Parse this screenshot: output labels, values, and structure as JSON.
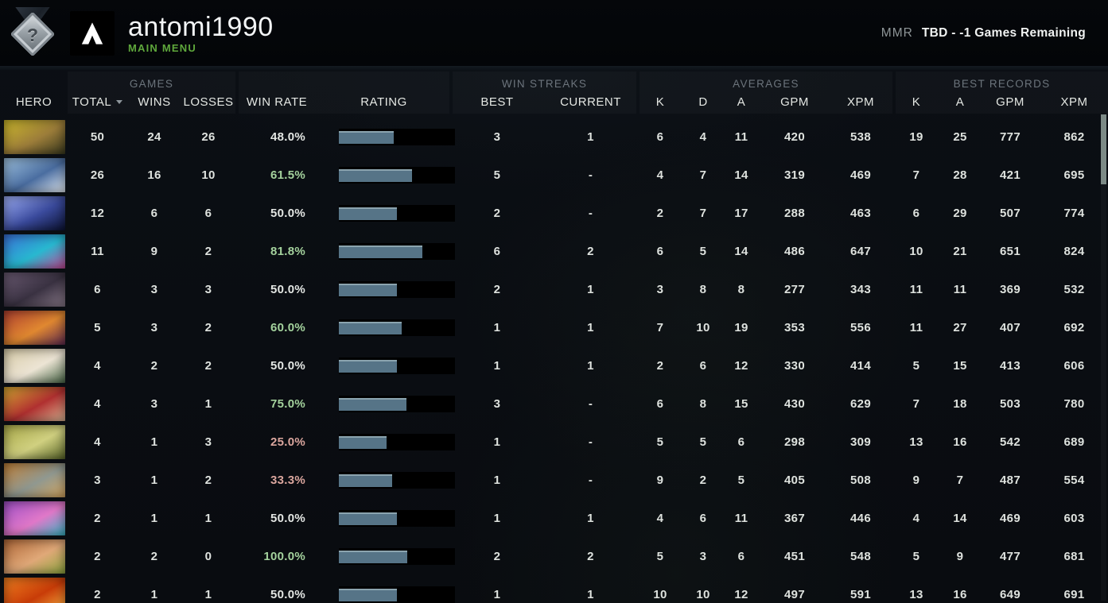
{
  "header_bar": {
    "username": "antomi1990",
    "subtitle": "MAIN MENU",
    "mmr_label": "MMR",
    "mmr_value": "TBD - -1 Games Remaining",
    "medal_icon": "unranked-question-medal-icon",
    "logo_icon": "dota2-logo-icon"
  },
  "colors": {
    "accent_green": "#5fa83c",
    "winrate_positive": "#a4d29d",
    "winrate_negative": "#dba69e",
    "winrate_neutral": "#e3e6e3",
    "rating_bar_fill": "#567487",
    "rating_bar_bg": "#000000",
    "scrollbar_thumb": "#7c8a86"
  },
  "table": {
    "groups": {
      "games": "GAMES",
      "win_streaks": "WIN STREAKS",
      "averages": "AVERAGES",
      "best_records": "BEST RECORDS"
    },
    "columns": {
      "hero": "HERO",
      "total": "TOTAL",
      "wins": "WINS",
      "losses": "LOSSES",
      "win_rate": "WIN RATE",
      "rating": "RATING",
      "best": "BEST",
      "current": "CURRENT",
      "k": "K",
      "d": "D",
      "a": "A",
      "gpm": "GPM",
      "xpm": "XPM",
      "rec_k": "K",
      "rec_a": "A",
      "rec_gpm": "GPM",
      "rec_xpm": "XPM"
    },
    "rows": [
      {
        "hero": "hoodwink",
        "portrait_colors": [
          "#cdb92c",
          "#9c7d3a",
          "#3a3a1e"
        ],
        "total": "50",
        "wins": "24",
        "losses": "26",
        "win_rate": "48.0%",
        "win_rate_color": "neutral",
        "rating_pct": 47,
        "streak_best": "3",
        "streak_current": "1",
        "avg_k": "6",
        "avg_d": "4",
        "avg_a": "11",
        "avg_gpm": "420",
        "avg_xpm": "538",
        "best_k": "19",
        "best_a": "25",
        "best_gpm": "777",
        "best_xpm": "862"
      },
      {
        "hero": "crystal-maiden",
        "portrait_colors": [
          "#9fc3e0",
          "#4a6da0",
          "#e8f0f8"
        ],
        "total": "26",
        "wins": "16",
        "losses": "10",
        "win_rate": "61.5%",
        "win_rate_color": "positive",
        "rating_pct": 63,
        "streak_best": "5",
        "streak_current": "-",
        "avg_k": "4",
        "avg_d": "7",
        "avg_a": "14",
        "avg_gpm": "319",
        "avg_xpm": "469",
        "best_k": "7",
        "best_a": "28",
        "best_gpm": "421",
        "best_xpm": "695"
      },
      {
        "hero": "io",
        "portrait_colors": [
          "#9fb0f8",
          "#3a4a9c",
          "#0c1334"
        ],
        "total": "12",
        "wins": "6",
        "losses": "6",
        "win_rate": "50.0%",
        "win_rate_color": "neutral",
        "rating_pct": 50,
        "streak_best": "2",
        "streak_current": "-",
        "avg_k": "2",
        "avg_d": "7",
        "avg_a": "17",
        "avg_gpm": "288",
        "avg_xpm": "463",
        "best_k": "6",
        "best_a": "29",
        "best_gpm": "507",
        "best_xpm": "774"
      },
      {
        "hero": "puck",
        "portrait_colors": [
          "#3a70d8",
          "#28b8d0",
          "#c84898"
        ],
        "total": "11",
        "wins": "9",
        "losses": "2",
        "win_rate": "81.8%",
        "win_rate_color": "positive",
        "rating_pct": 72,
        "streak_best": "6",
        "streak_current": "2",
        "avg_k": "6",
        "avg_d": "5",
        "avg_a": "14",
        "avg_gpm": "486",
        "avg_xpm": "647",
        "best_k": "10",
        "best_a": "21",
        "best_gpm": "651",
        "best_xpm": "824"
      },
      {
        "hero": "night-stalker",
        "portrait_colors": [
          "#6a5a72",
          "#3a3242",
          "#8a7a8a"
        ],
        "total": "6",
        "wins": "3",
        "losses": "3",
        "win_rate": "50.0%",
        "win_rate_color": "neutral",
        "rating_pct": 50,
        "streak_best": "2",
        "streak_current": "1",
        "avg_k": "3",
        "avg_d": "8",
        "avg_a": "8",
        "avg_gpm": "277",
        "avg_xpm": "343",
        "best_k": "11",
        "best_a": "11",
        "best_gpm": "369",
        "best_xpm": "532"
      },
      {
        "hero": "lion",
        "portrait_colors": [
          "#b04030",
          "#e08830",
          "#602a50"
        ],
        "total": "5",
        "wins": "3",
        "losses": "2",
        "win_rate": "60.0%",
        "win_rate_color": "positive",
        "rating_pct": 54,
        "streak_best": "1",
        "streak_current": "1",
        "avg_k": "7",
        "avg_d": "10",
        "avg_a": "19",
        "avg_gpm": "353",
        "avg_xpm": "556",
        "best_k": "11",
        "best_a": "27",
        "best_gpm": "407",
        "best_xpm": "692"
      },
      {
        "hero": "keeper-of-the-light",
        "portrait_colors": [
          "#d8cca8",
          "#ece4d4",
          "#4a6848"
        ],
        "total": "4",
        "wins": "2",
        "losses": "2",
        "win_rate": "50.0%",
        "win_rate_color": "neutral",
        "rating_pct": 50,
        "streak_best": "1",
        "streak_current": "1",
        "avg_k": "2",
        "avg_d": "6",
        "avg_a": "12",
        "avg_gpm": "330",
        "avg_xpm": "414",
        "best_k": "5",
        "best_a": "15",
        "best_gpm": "413",
        "best_xpm": "606"
      },
      {
        "hero": "legion-commander",
        "portrait_colors": [
          "#d4a832",
          "#b03030",
          "#e0b896"
        ],
        "total": "4",
        "wins": "3",
        "losses": "1",
        "win_rate": "75.0%",
        "win_rate_color": "positive",
        "rating_pct": 58,
        "streak_best": "3",
        "streak_current": "-",
        "avg_k": "6",
        "avg_d": "8",
        "avg_a": "15",
        "avg_gpm": "430",
        "avg_xpm": "629",
        "best_k": "7",
        "best_a": "18",
        "best_gpm": "503",
        "best_xpm": "780"
      },
      {
        "hero": "pudge",
        "portrait_colors": [
          "#a8a848",
          "#d0d080",
          "#5a6628"
        ],
        "total": "4",
        "wins": "1",
        "losses": "3",
        "win_rate": "25.0%",
        "win_rate_color": "negative",
        "rating_pct": 41,
        "streak_best": "1",
        "streak_current": "-",
        "avg_k": "5",
        "avg_d": "5",
        "avg_a": "6",
        "avg_gpm": "298",
        "avg_xpm": "309",
        "best_k": "13",
        "best_a": "16",
        "best_gpm": "542",
        "best_xpm": "689"
      },
      {
        "hero": "techies",
        "portrait_colors": [
          "#c08038",
          "#909890",
          "#d8a860"
        ],
        "total": "3",
        "wins": "1",
        "losses": "2",
        "win_rate": "33.3%",
        "win_rate_color": "negative",
        "rating_pct": 46,
        "streak_best": "1",
        "streak_current": "-",
        "avg_k": "9",
        "avg_d": "2",
        "avg_a": "5",
        "avg_gpm": "405",
        "avg_xpm": "508",
        "best_k": "9",
        "best_a": "7",
        "best_gpm": "487",
        "best_xpm": "554"
      },
      {
        "hero": "dazzle",
        "portrait_colors": [
          "#a050c8",
          "#e078c8",
          "#38b8c8"
        ],
        "total": "2",
        "wins": "1",
        "losses": "1",
        "win_rate": "50.0%",
        "win_rate_color": "neutral",
        "rating_pct": 50,
        "streak_best": "1",
        "streak_current": "1",
        "avg_k": "4",
        "avg_d": "6",
        "avg_a": "11",
        "avg_gpm": "367",
        "avg_xpm": "446",
        "best_k": "4",
        "best_a": "14",
        "best_gpm": "469",
        "best_xpm": "603"
      },
      {
        "hero": "enchantress",
        "portrait_colors": [
          "#b06838",
          "#e0a878",
          "#90a840"
        ],
        "total": "2",
        "wins": "2",
        "losses": "0",
        "win_rate": "100.0%",
        "win_rate_color": "positive",
        "rating_pct": 59,
        "streak_best": "2",
        "streak_current": "2",
        "avg_k": "5",
        "avg_d": "3",
        "avg_a": "6",
        "avg_gpm": "451",
        "avg_xpm": "548",
        "best_k": "5",
        "best_a": "9",
        "best_gpm": "477",
        "best_xpm": "681"
      },
      {
        "hero": "lina",
        "portrait_colors": [
          "#f08020",
          "#c83c08",
          "#f8b040"
        ],
        "total": "2",
        "wins": "1",
        "losses": "1",
        "win_rate": "50.0%",
        "win_rate_color": "neutral",
        "rating_pct": 50,
        "streak_best": "1",
        "streak_current": "1",
        "avg_k": "10",
        "avg_d": "10",
        "avg_a": "12",
        "avg_gpm": "497",
        "avg_xpm": "591",
        "best_k": "13",
        "best_a": "16",
        "best_gpm": "649",
        "best_xpm": "691"
      }
    ]
  }
}
